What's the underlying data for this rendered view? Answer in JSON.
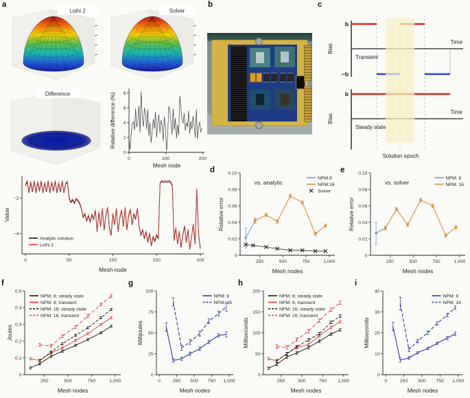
{
  "panel_letters": {
    "a": "a",
    "b": "b",
    "c": "c",
    "d": "d",
    "e": "e",
    "f": "f",
    "g": "g",
    "h": "h",
    "i": "i"
  },
  "panel_a": {
    "surface_titles": [
      "Loihi 2",
      "Solver",
      "Difference"
    ],
    "surface_colormap": [
      "#c01414",
      "#f07010",
      "#f5d000",
      "#58c052",
      "#20b8b0",
      "#2060d8",
      "#1818a0"
    ],
    "difference_disk_color": "#061a9e"
  },
  "panel_c": {
    "b_label": "b",
    "neg_b_label": "−b",
    "bias_label": "Bias",
    "time_label": "Time",
    "transient_label": "Transient",
    "steady_label": "Steady state",
    "epoch_label": "Solution epoch",
    "colors": {
      "positive": "#d62b1f",
      "negative": "#2b3fd4",
      "epoch_band": "#f5eec2"
    }
  },
  "chart_data": [
    {
      "type": "line",
      "panel": "a",
      "title_text": "",
      "xlabel": "Mesh node",
      "ylabel": "Relative difference (%)",
      "xlim": [
        0,
        205
      ],
      "ylim": [
        0,
        8.6
      ],
      "xticks": [
        0,
        100,
        200
      ],
      "xtick_labels": [
        "0",
        "100",
        "200"
      ],
      "yticks": [
        0,
        2,
        4,
        6,
        8
      ],
      "ytick_labels": [
        "0",
        "2",
        "4",
        "6",
        "8"
      ],
      "m": [
        5,
        5,
        26,
        30
      ],
      "series": [
        {
          "name": "relative difference",
          "legend": false,
          "color": "#3a3a3a",
          "lw": 0.7,
          "x_start": 0,
          "x_step": 3,
          "y": [
            1.8,
            0.4,
            2.5,
            3.9,
            4.1,
            3.0,
            5.9,
            3.4,
            4.2,
            6.3,
            2.7,
            8.2,
            4.7,
            3.5,
            6.0,
            5.2,
            3.1,
            5.8,
            2.2,
            4.0,
            1.3,
            2.8,
            4.5,
            3.2,
            5.5,
            2.0,
            3.8,
            5.1,
            2.6,
            4.3,
            3.6,
            1.5,
            4.8,
            3.3,
            0.2,
            2.1,
            6.2,
            5.7,
            4.1,
            2.4,
            5.9,
            3.0,
            4.6,
            1.9,
            3.7,
            2.3,
            7.6,
            6.1,
            4.4,
            3.9,
            5.3,
            2.9,
            4.0,
            3.4,
            5.6,
            2.5,
            4.2,
            3.1,
            4.9,
            3.6,
            2.0,
            5.8,
            1.8,
            3.5,
            4.1,
            2.7,
            3.3
          ]
        }
      ]
    },
    {
      "type": "line",
      "panel": "a",
      "xlabel": "Mesh node",
      "ylabel": "Value",
      "xlim": [
        -4,
        204
      ],
      "ylim": [
        -5.15,
        -0.72
      ],
      "xticks": [
        0,
        50,
        100,
        150,
        200
      ],
      "xtick_labels": [
        "0",
        "50",
        "100",
        "150",
        "200"
      ],
      "yticks": [
        -2,
        -4
      ],
      "ytick_labels": [
        "−2",
        "−4"
      ],
      "m": [
        6,
        6,
        30,
        28
      ],
      "legend": "bl",
      "series": [
        {
          "name": "Analytic solution",
          "color": "#111111",
          "lw": 0.9,
          "x_start": 0,
          "x_step": 2,
          "y": [
            -1.3,
            -1.05,
            -1.7,
            -1.1,
            -1.65,
            -1.05,
            -1.7,
            -1.1,
            -1.6,
            -1.05,
            -1.7,
            -1.15,
            -1.65,
            -1.05,
            -1.7,
            -1.1,
            -1.6,
            -1.05,
            -1.7,
            -1.15,
            -1.65,
            -1.05,
            -1.7,
            -1.2,
            -1.1,
            -2.0,
            -2.25,
            -2.1,
            -2.3,
            -2.05,
            -2.15,
            -2.3,
            -2.6,
            -3.1,
            -2.9,
            -3.3,
            -3.0,
            -3.35,
            -2.95,
            -3.2,
            -2.7,
            -3.9,
            -2.8,
            -3.6,
            -2.6,
            -3.8,
            -3.0,
            -2.55,
            -3.7,
            -4.1,
            -2.9,
            -3.5,
            -2.6,
            -3.9,
            -3.1,
            -2.7,
            -3.6,
            -2.55,
            -3.8,
            -3.0,
            -2.65,
            -3.5,
            -2.9,
            -3.2,
            -2.6,
            -3.6,
            -4.1,
            -3.8,
            -4.3,
            -3.9,
            -4.5,
            -4.0,
            -4.7,
            -4.2,
            -4.45,
            -4.1,
            -4.3,
            -1.15,
            -1.05,
            -1.1,
            -1.05,
            -1.1,
            -1.05,
            -1.1,
            -1.3,
            -4.4,
            -3.7,
            -4.6,
            -3.9,
            -4.8,
            -4.1,
            -3.6,
            -4.5,
            -3.8,
            -4.9,
            -4.2,
            -3.5,
            -4.6,
            -1.5,
            -4.0,
            -4.85
          ]
        },
        {
          "name": "Loihi 2",
          "color": "#e0322a",
          "lw": 0.8,
          "y_ref": 0,
          "offset": 0.06
        }
      ]
    },
    {
      "type": "line",
      "panel": "d",
      "title": {
        "text": "vs. analytic",
        "fx": 0.3,
        "fy": 0.14
      },
      "xlabel": "Mesh nodes",
      "ylabel": "Relative error",
      "xlim": [
        40,
        1060
      ],
      "ylim": [
        0,
        0.1
      ],
      "xticks": [
        250,
        500,
        750,
        1000
      ],
      "xtick_labels": [
        "250",
        "500",
        "750",
        "1,000"
      ],
      "yticks": [
        0,
        0.02,
        0.04,
        0.06,
        0.08,
        0.1
      ],
      "ytick_labels": [
        "0",
        "0.02",
        "0.04",
        "0.06",
        "0.08",
        "0.10"
      ],
      "m": [
        6,
        6,
        30,
        34
      ],
      "legend": "tr",
      "series": [
        {
          "name": "NPM:8",
          "color": "#6f9ed2",
          "lw": 1.1,
          "marker": "dot",
          "x": [
            100,
            200
          ],
          "y": [
            0.021,
            0.042
          ],
          "yerr": [
            0.012,
            0.003
          ]
        },
        {
          "name": "NPM:16",
          "color": "#de8f3f",
          "lw": 1.1,
          "marker": "dot",
          "x": [
            200,
            320,
            440,
            580,
            710,
            850,
            960
          ],
          "y": [
            0.042,
            0.049,
            0.041,
            0.072,
            0.064,
            0.026,
            0.036
          ],
          "yerr": 0.002
        },
        {
          "name": "Solver",
          "color": "#222222",
          "lw": 0.8,
          "marker": "x",
          "x": [
            100,
            180,
            320,
            440,
            580,
            710,
            850,
            960
          ],
          "y": [
            0.013,
            0.012,
            0.01,
            0.008,
            0.006,
            0.006,
            0.005,
            0.005
          ]
        }
      ]
    },
    {
      "type": "line",
      "panel": "e",
      "title": {
        "text": "vs. solver",
        "fx": 0.28,
        "fy": 0.14
      },
      "xlabel": "Mesh nodes",
      "ylabel": "Relative error",
      "xlim": [
        40,
        1060
      ],
      "ylim": [
        0,
        0.1
      ],
      "xticks": [
        250,
        500,
        750,
        1000
      ],
      "xtick_labels": [
        "250",
        "500",
        "750",
        "1,000"
      ],
      "yticks": [
        0,
        0.02,
        0.04,
        0.06,
        0.08,
        0.1
      ],
      "ytick_labels": [
        "0",
        "0.02",
        "0.04",
        "0.06",
        "0.08",
        "0.10"
      ],
      "m": [
        6,
        6,
        30,
        34
      ],
      "legend": "tr",
      "series": [
        {
          "name": "NPM: 8",
          "color": "#6f9ed2",
          "lw": 1.1,
          "marker": "dot",
          "x": [
            100,
            200
          ],
          "y": [
            0.027,
            0.033
          ],
          "yerr": [
            0.013,
            0.002
          ]
        },
        {
          "name": "NPM: 16",
          "color": "#de8f3f",
          "lw": 1.1,
          "marker": "dot",
          "x": [
            200,
            320,
            440,
            580,
            710,
            850,
            960
          ],
          "y": [
            0.033,
            0.056,
            0.037,
            0.067,
            0.06,
            0.024,
            0.034
          ],
          "yerr": 0.002
        }
      ]
    },
    {
      "type": "line",
      "panel": "f",
      "xlabel": "Mesh nodes",
      "ylabel": "Joules",
      "xlim": [
        40,
        1060
      ],
      "ylim": [
        0,
        0.5
      ],
      "xticks": [
        250,
        500,
        750,
        1000
      ],
      "xtick_labels": [
        "250",
        "500",
        "750",
        "1,000"
      ],
      "yticks": [
        0,
        0.1,
        0.2,
        0.3,
        0.4,
        0.5
      ],
      "ytick_labels": [
        "0",
        "0.1",
        "0.2",
        "0.3",
        "0.4",
        "0.5"
      ],
      "m": [
        6,
        6,
        30,
        28
      ],
      "legend": "tl",
      "series": [
        {
          "name": "NPM: 8; steady state",
          "color": "#111111",
          "lw": 0.9,
          "x": [
            100,
            200,
            320,
            440,
            580,
            710,
            850,
            960
          ],
          "y": [
            0.04,
            0.065,
            0.11,
            0.14,
            0.175,
            0.21,
            0.25,
            0.29
          ],
          "yerr": 0.006
        },
        {
          "name": "NPM: 8; transient",
          "color": "#d63a2f",
          "lw": 0.9,
          "x": [
            100,
            200,
            320,
            440,
            580,
            710,
            850,
            960
          ],
          "y": [
            0.095,
            0.085,
            0.13,
            0.16,
            0.205,
            0.245,
            0.3,
            0.34
          ],
          "yerr": 0.006
        },
        {
          "name": "NPM: 16; steady state",
          "color": "#111111",
          "lw": 0.9,
          "dash": "4 2.2",
          "x": [
            200,
            320,
            440,
            580,
            710,
            850,
            960
          ],
          "y": [
            0.085,
            0.135,
            0.185,
            0.235,
            0.28,
            0.34,
            0.39
          ],
          "yerr": 0.006
        },
        {
          "name": "NPM: 16; transient",
          "color": "#d63a2f",
          "lw": 0.9,
          "dash": "5 2.8",
          "x": [
            200,
            320,
            440,
            580,
            710,
            850,
            960
          ],
          "y": [
            0.178,
            0.172,
            0.23,
            0.285,
            0.35,
            0.42,
            0.47
          ],
          "yerr": 0.008
        }
      ]
    },
    {
      "type": "line",
      "panel": "g",
      "xlabel": "Mesh nodes",
      "ylabel": "Millijoules",
      "xlim": [
        -40,
        1060
      ],
      "ylim": [
        0,
        100
      ],
      "xticks": [
        0,
        250,
        500,
        750,
        1000
      ],
      "xtick_labels": [
        "0",
        "250",
        "500",
        "750",
        "1,000"
      ],
      "yticks": [
        0,
        25,
        50,
        75,
        100
      ],
      "ytick_labels": [
        "0",
        "25",
        "50",
        "75",
        "100"
      ],
      "m": [
        6,
        8,
        30,
        30
      ],
      "legend": "tr",
      "series": [
        {
          "name": "NPM: 8",
          "color": "#2c3b9e",
          "lw": 1.1,
          "x": [
            100,
            200,
            320,
            440,
            580,
            710,
            850,
            960
          ],
          "y": [
            57,
            17,
            19,
            25,
            31,
            39,
            47,
            48
          ],
          "yerr": [
            5,
            2,
            2,
            2,
            2,
            2,
            2,
            3
          ]
        },
        {
          "name": "NPM: 16",
          "color": "#2c3b9e",
          "lw": 1.1,
          "dash": "5 2.5",
          "x": [
            200,
            320,
            440,
            580,
            710,
            850,
            960
          ],
          "y": [
            87,
            32,
            39,
            49,
            64,
            73,
            81
          ],
          "yerr": [
            5,
            3,
            3,
            3,
            3,
            3,
            5
          ]
        }
      ]
    },
    {
      "type": "line",
      "panel": "h",
      "xlabel": "Mesh nodes",
      "ylabel": "Milliseconds",
      "xlim": [
        40,
        1060
      ],
      "ylim": [
        0,
        200
      ],
      "xticks": [
        250,
        500,
        750,
        1000
      ],
      "xtick_labels": [
        "250",
        "500",
        "750",
        "1,000"
      ],
      "yticks": [
        0,
        50,
        100,
        150,
        200
      ],
      "ytick_labels": [
        "0",
        "50",
        "100",
        "150",
        "200"
      ],
      "m": [
        6,
        6,
        30,
        32
      ],
      "legend": "tl",
      "series": [
        {
          "name": "NPM: 8; steady state",
          "color": "#111111",
          "lw": 0.9,
          "x": [
            100,
            200,
            320,
            440,
            580,
            710,
            850,
            960
          ],
          "y": [
            15,
            25,
            42,
            52,
            65,
            80,
            97,
            107
          ],
          "yerr": 3
        },
        {
          "name": "NPM: 8; transient",
          "color": "#d63a2f",
          "lw": 0.9,
          "x": [
            100,
            200,
            320,
            440,
            580,
            710,
            850,
            960
          ],
          "y": [
            38,
            33,
            50,
            65,
            72,
            93,
            113,
            127
          ],
          "yerr": 3
        },
        {
          "name": "NPM: 16; steady state",
          "color": "#111111",
          "lw": 0.9,
          "dash": "4 2.2",
          "x": [
            200,
            320,
            440,
            580,
            710,
            850,
            960
          ],
          "y": [
            33,
            50,
            67,
            83,
            98,
            125,
            140
          ],
          "yerr": 3
        },
        {
          "name": "NPM: 16; transient",
          "color": "#d63a2f",
          "lw": 0.9,
          "dash": "5 2.8",
          "x": [
            200,
            320,
            440,
            580,
            710,
            850,
            960
          ],
          "y": [
            67,
            65,
            84,
            104,
            129,
            155,
            172
          ],
          "yerr": 4
        }
      ]
    },
    {
      "type": "line",
      "panel": "i",
      "xlabel": "Mesh nodes",
      "ylabel": "Milliseconds",
      "xlim": [
        -40,
        1060
      ],
      "ylim": [
        0,
        40
      ],
      "xticks": [
        0,
        250,
        500,
        750,
        1000
      ],
      "xtick_labels": [
        "0",
        "250",
        "500",
        "750",
        "1,000"
      ],
      "yticks": [
        0,
        10,
        20,
        30,
        40
      ],
      "ytick_labels": [
        "0",
        "10",
        "20",
        "30",
        "40"
      ],
      "m": [
        6,
        8,
        30,
        30
      ],
      "legend": "tr",
      "series": [
        {
          "name": "NPM: 8",
          "color": "#2c3b9e",
          "lw": 1.1,
          "x": [
            100,
            200,
            320,
            440,
            580,
            710,
            850,
            960
          ],
          "y": [
            23,
            7,
            8,
            10.5,
            12.5,
            15,
            17.5,
            19.5
          ],
          "yerr": [
            2,
            1,
            0.6,
            0.6,
            0.6,
            0.6,
            0.8,
            0.8
          ]
        },
        {
          "name": "NPM: 16",
          "color": "#2c3b9e",
          "lw": 1.1,
          "dash": "5 2.5",
          "x": [
            200,
            320,
            440,
            580,
            710,
            850,
            960
          ],
          "y": [
            34,
            12,
            16,
            20,
            24.5,
            28.5,
            32
          ],
          "yerr": [
            3,
            1,
            0.8,
            0.8,
            0.8,
            0.8,
            0.8
          ]
        }
      ]
    }
  ]
}
